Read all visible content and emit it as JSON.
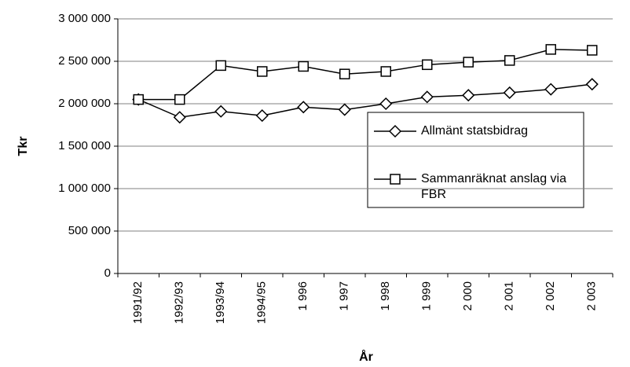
{
  "chart_data": {
    "type": "line",
    "xlabel": "År",
    "ylabel": "Tkr",
    "categories": [
      "1991/92",
      "1992/93",
      "1993/94",
      "1994/95",
      "1 996",
      "1 997",
      "1 998",
      "1 999",
      "2 000",
      "2 001",
      "2 002",
      "2 003"
    ],
    "series": [
      {
        "name": "Allmänt statsbidrag",
        "color": "#000000",
        "marker": "diamond",
        "values": [
          2050000,
          1840000,
          1910000,
          1860000,
          1960000,
          1930000,
          2000000,
          2080000,
          2100000,
          2130000,
          2170000,
          2230000
        ]
      },
      {
        "name": "Sammanräknat anslag via FBR",
        "color": "#000000",
        "marker": "square",
        "values": [
          2050000,
          2050000,
          2450000,
          2380000,
          2440000,
          2350000,
          2380000,
          2460000,
          2490000,
          2510000,
          2640000,
          2630000
        ]
      }
    ],
    "ylim": [
      0,
      3000000
    ],
    "yticks": [
      {
        "value": 0,
        "label": "0"
      },
      {
        "value": 500000,
        "label": "500 000"
      },
      {
        "value": 1000000,
        "label": "1 000 000"
      },
      {
        "value": 1500000,
        "label": "1 500 000"
      },
      {
        "value": 2000000,
        "label": "2 000 000"
      },
      {
        "value": 2500000,
        "label": "2 500 000"
      },
      {
        "value": 3000000,
        "label": "3 000 000"
      }
    ],
    "grid": true
  }
}
